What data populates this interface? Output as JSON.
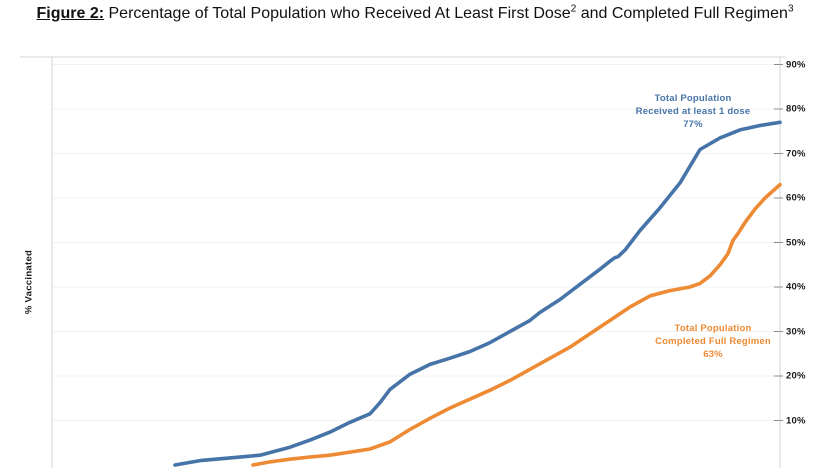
{
  "title": {
    "figure_label": "Figure 2:",
    "part1": " Percentage of Total Population who Received At Least First Dose",
    "sup2": "2",
    "part2": " and Completed Full Regimen",
    "sup3": "3"
  },
  "y_axis": {
    "title": "% Vaccinated",
    "ticks": [
      {
        "pct": 90,
        "label": "90%"
      },
      {
        "pct": 80,
        "label": "80%"
      },
      {
        "pct": 70,
        "label": "70%"
      },
      {
        "pct": 60,
        "label": "60%"
      },
      {
        "pct": 50,
        "label": "50%"
      },
      {
        "pct": 40,
        "label": "40%"
      },
      {
        "pct": 30,
        "label": "30%"
      },
      {
        "pct": 20,
        "label": "20%"
      },
      {
        "pct": 10,
        "label": "10%"
      }
    ]
  },
  "annotations": {
    "first_dose": {
      "line1": "Total Population",
      "line2": "Received at least 1 dose",
      "line3": "77%"
    },
    "full_regimen": {
      "line1": "Total Population",
      "line2": "Completed Full Regimen",
      "line3": "63%"
    }
  },
  "colors": {
    "first_dose_line": "#4674A8",
    "full_regimen_line": "#ED8A33",
    "gridline": "#F1F1F1",
    "axis_line": "#D6D6D6",
    "tick_dash": "#8C8C8C"
  },
  "chart_data": {
    "type": "line",
    "title": "Percentage of Total Population who Received At Least First Dose and Completed Full Regimen",
    "ylabel": "% Vaccinated",
    "ylim": [
      0,
      93
    ],
    "y_ticks_pct": [
      10,
      20,
      30,
      40,
      50,
      60,
      70,
      80,
      90
    ],
    "grid": "horizontal",
    "legend_position": "inline-annotations",
    "series": [
      {
        "name": "Total Population Received at least 1 dose",
        "end_value_pct": 77,
        "color": "#4674A8",
        "points": [
          [
            0.1689,
            0
          ],
          [
            0.2033,
            1.0
          ],
          [
            0.2445,
            1.6
          ],
          [
            0.2857,
            2.2
          ],
          [
            0.3269,
            4.0
          ],
          [
            0.3544,
            5.6
          ],
          [
            0.3819,
            7.4
          ],
          [
            0.4093,
            9.6
          ],
          [
            0.4368,
            11.5
          ],
          [
            0.4505,
            14.0
          ],
          [
            0.4643,
            17.0
          ],
          [
            0.4918,
            20.4
          ],
          [
            0.5192,
            22.6
          ],
          [
            0.5467,
            24.0
          ],
          [
            0.5742,
            25.5
          ],
          [
            0.6016,
            27.5
          ],
          [
            0.6291,
            30.0
          ],
          [
            0.6566,
            32.5
          ],
          [
            0.6703,
            34.3
          ],
          [
            0.6978,
            37.2
          ],
          [
            0.7253,
            40.6
          ],
          [
            0.7527,
            44.0
          ],
          [
            0.7665,
            45.8
          ],
          [
            0.7733,
            46.6
          ],
          [
            0.7775,
            46.8
          ],
          [
            0.7871,
            48.3
          ],
          [
            0.8077,
            52.7
          ],
          [
            0.8352,
            57.8
          ],
          [
            0.8626,
            63.4
          ],
          [
            0.8901,
            70.9
          ],
          [
            0.9176,
            73.5
          ],
          [
            0.9451,
            75.3
          ],
          [
            0.9725,
            76.3
          ],
          [
            1.0,
            77.0
          ]
        ]
      },
      {
        "name": "Total Population Completed Full Regimen",
        "end_value_pct": 63,
        "color": "#ED8A33",
        "points": [
          [
            0.2761,
            0
          ],
          [
            0.2994,
            0.7
          ],
          [
            0.3269,
            1.3
          ],
          [
            0.3544,
            1.8
          ],
          [
            0.3819,
            2.2
          ],
          [
            0.4093,
            2.9
          ],
          [
            0.4368,
            3.6
          ],
          [
            0.4643,
            5.2
          ],
          [
            0.4918,
            8.0
          ],
          [
            0.5192,
            10.5
          ],
          [
            0.5467,
            12.8
          ],
          [
            0.5742,
            14.8
          ],
          [
            0.6016,
            16.8
          ],
          [
            0.6291,
            19.0
          ],
          [
            0.6566,
            21.5
          ],
          [
            0.6841,
            24.0
          ],
          [
            0.7115,
            26.5
          ],
          [
            0.739,
            29.5
          ],
          [
            0.7665,
            32.5
          ],
          [
            0.794,
            35.5
          ],
          [
            0.8214,
            38.0
          ],
          [
            0.8489,
            39.2
          ],
          [
            0.8764,
            40.0
          ],
          [
            0.8901,
            40.8
          ],
          [
            0.9038,
            42.5
          ],
          [
            0.9176,
            45.0
          ],
          [
            0.9286,
            47.5
          ],
          [
            0.9354,
            50.5
          ],
          [
            0.9423,
            52.0
          ],
          [
            0.9519,
            54.5
          ],
          [
            0.9657,
            57.5
          ],
          [
            0.9794,
            60.0
          ],
          [
            1.0,
            63.0
          ]
        ]
      }
    ]
  }
}
